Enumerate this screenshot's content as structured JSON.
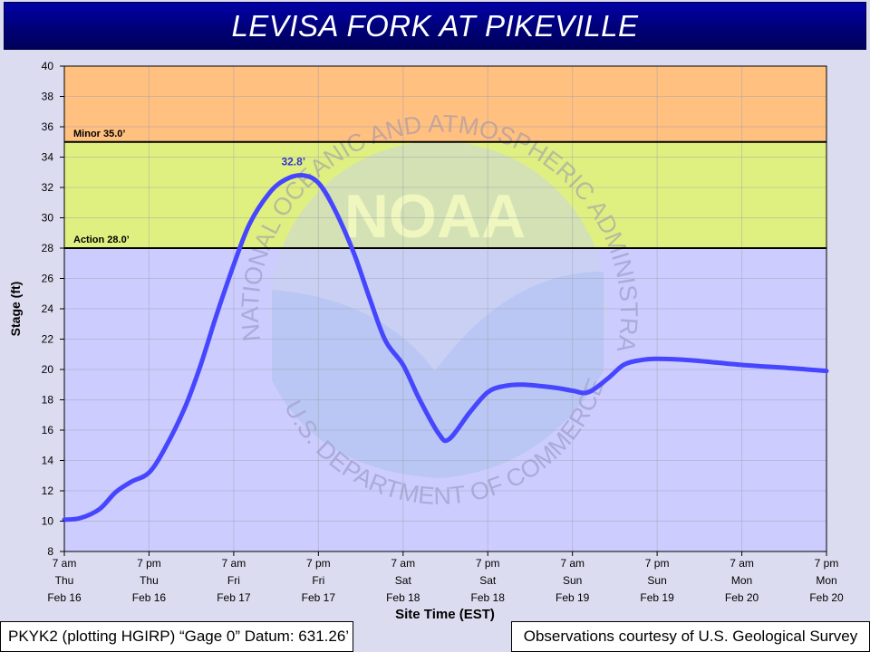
{
  "header": {
    "title": "LEVISA FORK AT PIKEVILLE"
  },
  "footer": {
    "left": "PKYK2 (plotting HGIRP) “Gage 0” Datum: 631.26’",
    "right": "Observations courtesy of U.S. Geological Survey"
  },
  "watermark": {
    "arc_text": "NATIONAL OCEANIC AND ATMOSPHERIC ADMINISTRATION",
    "bottom_text": "U.S. DEPARTMENT OF COMMERCE",
    "center_text": "NOAA"
  },
  "colors": {
    "minor_band": "#ffc080",
    "action_band": "#e0f080",
    "normal_band": "#ccccff",
    "line": "#4646ff",
    "peak_label": "#3333cc",
    "threshold_line": "#000000"
  },
  "chart_data": {
    "type": "line",
    "ylabel": "Stage (ft)",
    "xlabel": "Site Time (EST)",
    "ylim": [
      8,
      40
    ],
    "yticks": [
      8,
      10,
      12,
      14,
      16,
      18,
      20,
      22,
      24,
      26,
      28,
      30,
      32,
      34,
      36,
      38,
      40
    ],
    "xlim": [
      "2023-02-16 07:00",
      "2023-02-20 19:00"
    ],
    "grid": true,
    "xticks": [
      {
        "x": "2023-02-16 07:00",
        "label": [
          "7 am",
          "Thu",
          "Feb 16"
        ]
      },
      {
        "x": "2023-02-16 19:00",
        "label": [
          "7 pm",
          "Thu",
          "Feb 16"
        ]
      },
      {
        "x": "2023-02-17 07:00",
        "label": [
          "7 am",
          "Fri",
          "Feb 17"
        ]
      },
      {
        "x": "2023-02-17 19:00",
        "label": [
          "7 pm",
          "Fri",
          "Feb 17"
        ]
      },
      {
        "x": "2023-02-18 07:00",
        "label": [
          "7 am",
          "Sat",
          "Feb 18"
        ]
      },
      {
        "x": "2023-02-18 19:00",
        "label": [
          "7 pm",
          "Sat",
          "Feb 18"
        ]
      },
      {
        "x": "2023-02-19 07:00",
        "label": [
          "7 am",
          "Sun",
          "Feb 19"
        ]
      },
      {
        "x": "2023-02-19 19:00",
        "label": [
          "7 pm",
          "Sun",
          "Feb 19"
        ]
      },
      {
        "x": "2023-02-20 07:00",
        "label": [
          "7 am",
          "Mon",
          "Feb 20"
        ]
      },
      {
        "x": "2023-02-20 19:00",
        "label": [
          "7 pm",
          "Mon",
          "Feb 20"
        ]
      }
    ],
    "thresholds": [
      {
        "name": "Minor",
        "value": 35.0,
        "label": "Minor 35.0’"
      },
      {
        "name": "Action",
        "value": 28.0,
        "label": "Action 28.0’"
      }
    ],
    "peak": {
      "x": "2023-02-17 16:45",
      "y": 32.8,
      "label": "32.8’"
    },
    "series": [
      {
        "points": [
          [
            "2023-02-16 07:00",
            10.1
          ],
          [
            "2023-02-16 09:15",
            10.2
          ],
          [
            "2023-02-16 12:00",
            10.8
          ],
          [
            "2023-02-16 14:15",
            11.9
          ],
          [
            "2023-02-16 16:30",
            12.6
          ],
          [
            "2023-02-16 19:00",
            13.2
          ],
          [
            "2023-02-16 21:15",
            14.8
          ],
          [
            "2023-02-17 00:00",
            17.4
          ],
          [
            "2023-02-17 02:15",
            20.2
          ],
          [
            "2023-02-17 04:30",
            23.5
          ],
          [
            "2023-02-17 07:00",
            26.9
          ],
          [
            "2023-02-17 09:15",
            29.6
          ],
          [
            "2023-02-17 12:00",
            31.6
          ],
          [
            "2023-02-17 14:15",
            32.5
          ],
          [
            "2023-02-17 16:45",
            32.8
          ],
          [
            "2023-02-17 19:00",
            32.3
          ],
          [
            "2023-02-17 21:15",
            30.6
          ],
          [
            "2023-02-18 00:00",
            27.7
          ],
          [
            "2023-02-18 02:15",
            24.7
          ],
          [
            "2023-02-18 04:30",
            21.9
          ],
          [
            "2023-02-18 07:00",
            20.3
          ],
          [
            "2023-02-18 09:15",
            18.1
          ],
          [
            "2023-02-18 12:00",
            15.8
          ],
          [
            "2023-02-18 13:30",
            15.4
          ],
          [
            "2023-02-18 16:30",
            17.2
          ],
          [
            "2023-02-18 19:00",
            18.5
          ],
          [
            "2023-02-18 21:15",
            18.9
          ],
          [
            "2023-02-19 00:00",
            19.0
          ],
          [
            "2023-02-19 04:30",
            18.8
          ],
          [
            "2023-02-19 07:00",
            18.6
          ],
          [
            "2023-02-19 09:15",
            18.5
          ],
          [
            "2023-02-19 12:00",
            19.4
          ],
          [
            "2023-02-19 14:15",
            20.3
          ],
          [
            "2023-02-19 16:30",
            20.6
          ],
          [
            "2023-02-19 19:00",
            20.7
          ],
          [
            "2023-02-20 00:00",
            20.6
          ],
          [
            "2023-02-20 07:00",
            20.3
          ],
          [
            "2023-02-20 13:30",
            20.1
          ],
          [
            "2023-02-20 19:00",
            19.9
          ]
        ]
      }
    ]
  }
}
